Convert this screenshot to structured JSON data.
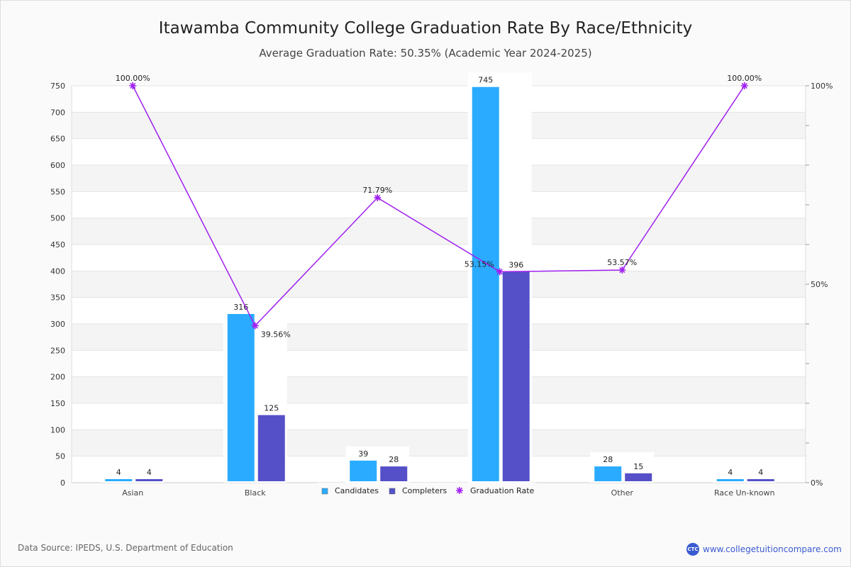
{
  "title": "Itawamba Community College Graduation Rate By Race/Ethnicity",
  "subtitle": "Average Graduation Rate: 50.35% (Academic Year 2024-2025)",
  "source": "Data Source: IPEDS, U.S. Department of Education",
  "brand": {
    "logo_text": "CTC",
    "url": "www.collegetuitioncompare.com"
  },
  "chart_data": {
    "type": "bar",
    "categories": [
      "Asian",
      "Black",
      "",
      "",
      "Other",
      "Race Un-known"
    ],
    "series": [
      {
        "name": "Candidates",
        "color": "#2aabff",
        "values": [
          4,
          316,
          39,
          745,
          28,
          4
        ]
      },
      {
        "name": "Completers",
        "color": "#5550c8",
        "values": [
          4,
          125,
          28,
          396,
          15,
          4
        ]
      },
      {
        "name": "Graduation Rate",
        "color": "#a020f0",
        "type": "line",
        "axis": "right",
        "values": [
          100,
          39.56,
          71.79,
          53.15,
          53.57,
          100
        ],
        "labels": [
          "100.00%",
          "39.56%",
          "71.79%",
          "53.15%",
          "53.57%",
          "100.00%"
        ]
      }
    ],
    "ylim": [
      0,
      750
    ],
    "yticks": [
      0,
      50,
      100,
      150,
      200,
      250,
      300,
      350,
      400,
      450,
      500,
      550,
      600,
      650,
      700,
      750
    ],
    "y2lim": [
      0,
      100
    ],
    "y2ticks": [
      "0%",
      "50%",
      "100%"
    ],
    "legend": "bottom-center",
    "grid": true
  }
}
